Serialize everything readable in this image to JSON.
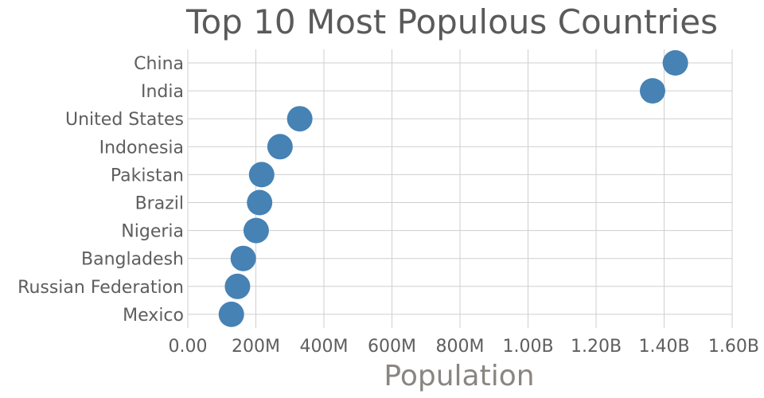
{
  "chart_data": {
    "type": "scatter",
    "title": "Top 10 Most Populous Countries",
    "xlabel": "Population",
    "ylabel": "",
    "categories": [
      "China",
      "India",
      "United States",
      "Indonesia",
      "Pakistan",
      "Brazil",
      "Nigeria",
      "Bangladesh",
      "Russian Federation",
      "Mexico"
    ],
    "values": [
      1433000000,
      1366000000,
      329000000,
      271000000,
      217000000,
      211000000,
      201000000,
      163000000,
      146000000,
      128000000
    ],
    "xlim": [
      0,
      1600000000
    ],
    "x_ticks": [
      0,
      200000000,
      400000000,
      600000000,
      800000000,
      1000000000,
      1200000000,
      1400000000,
      1600000000
    ],
    "x_tick_labels": [
      "0.00",
      "200M",
      "400M",
      "600M",
      "800M",
      "1.00B",
      "1.20B",
      "1.40B",
      "1.60B"
    ],
    "grid": true,
    "marker_color": "#4682b4"
  }
}
